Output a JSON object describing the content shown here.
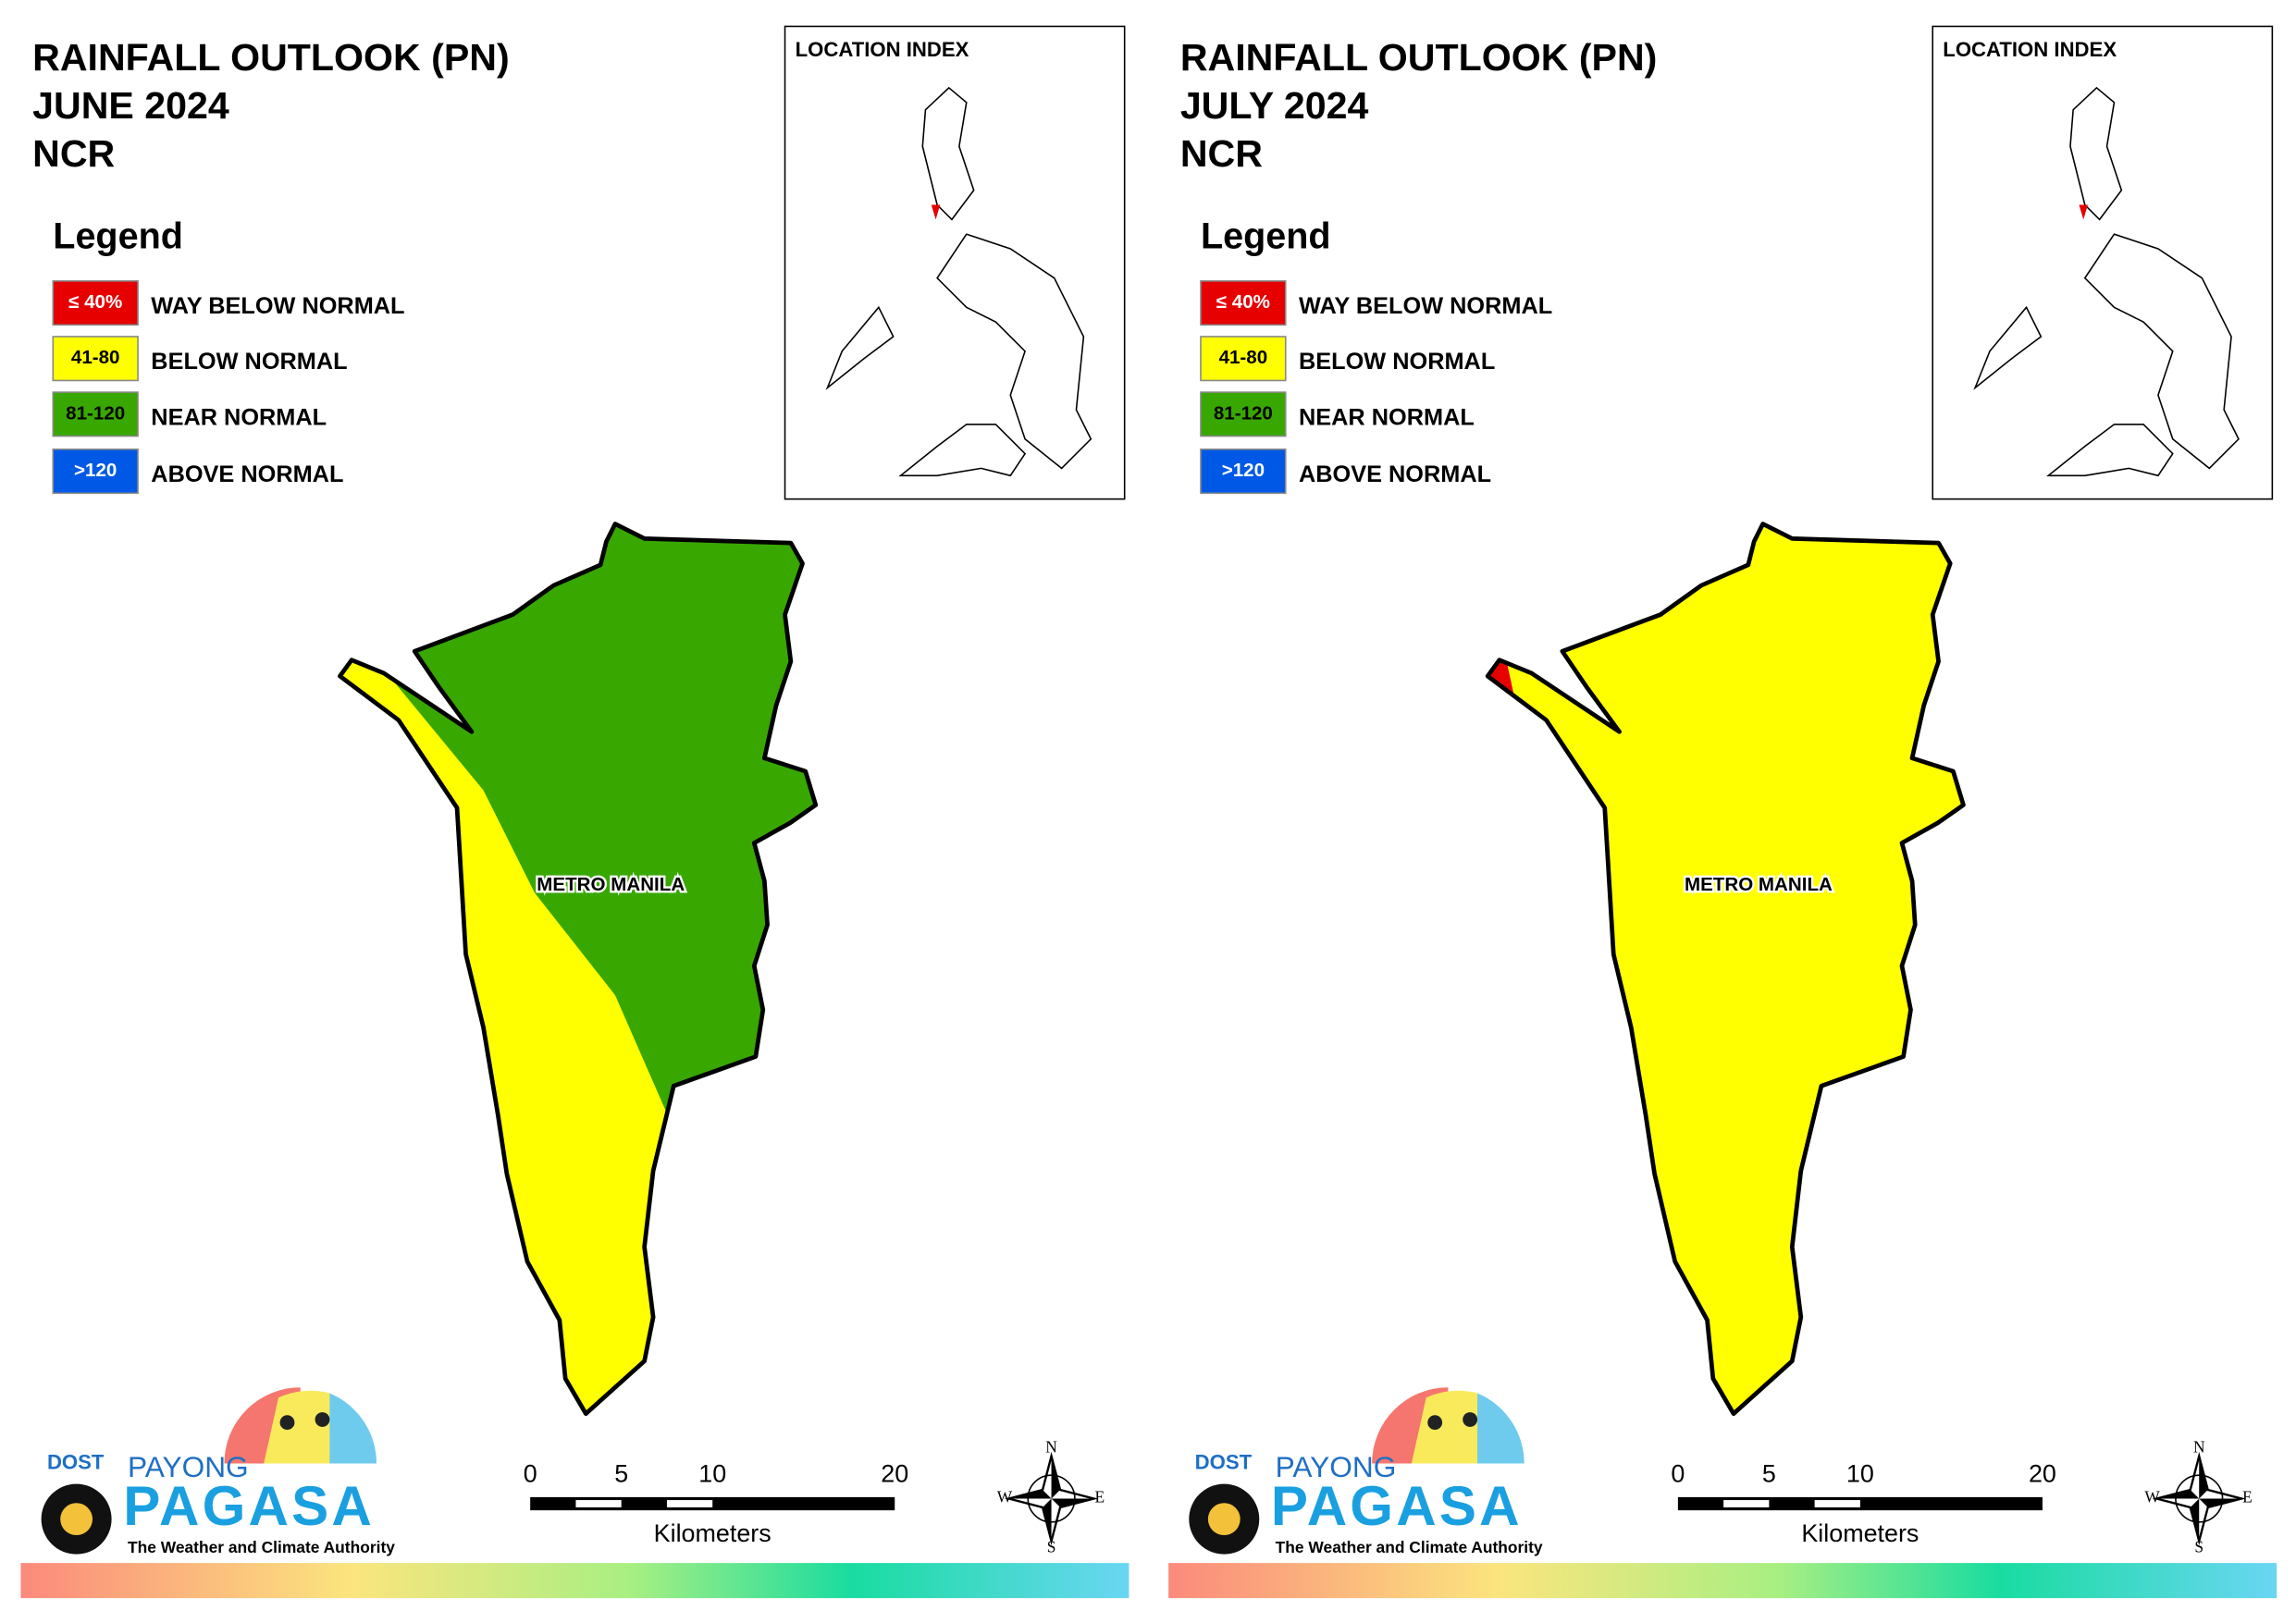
{
  "panels": [
    {
      "title": [
        "RAINFALL OUTLOOK (PN)",
        "JUNE 2024",
        "NCR"
      ],
      "legend": {
        "title": "Legend",
        "items": [
          {
            "code": "≤ 40%",
            "label": "WAY BELOW NORMAL",
            "color": "#e60000"
          },
          {
            "code": "41-80",
            "label": "BELOW NORMAL",
            "color": "#ffff00"
          },
          {
            "code": "81-120",
            "label": "NEAR NORMAL",
            "color": "#38a800"
          },
          {
            "code": ">120",
            "label": "ABOVE NORMAL",
            "color": "#0059e6"
          }
        ]
      },
      "location_index": "LOCATION INDEX",
      "map_label": "METRO MANILA",
      "scale": {
        "ticks": [
          0,
          5,
          10,
          20
        ],
        "unit": "Kilometers"
      },
      "compass": {
        "n": "N",
        "e": "E",
        "s": "S",
        "w": "W"
      },
      "logo": {
        "agency": "DOST",
        "brand_top": "PAYONG",
        "brand": "PAGASA",
        "tagline": "The Weather and Climate Authority"
      }
    },
    {
      "title": [
        "RAINFALL OUTLOOK (PN)",
        "JULY 2024",
        "NCR"
      ],
      "legend": {
        "title": "Legend",
        "items": [
          {
            "code": "≤ 40%",
            "label": "WAY BELOW NORMAL",
            "color": "#e60000"
          },
          {
            "code": "41-80",
            "label": "BELOW NORMAL",
            "color": "#ffff00"
          },
          {
            "code": "81-120",
            "label": "NEAR NORMAL",
            "color": "#38a800"
          },
          {
            "code": ">120",
            "label": "ABOVE NORMAL",
            "color": "#0059e6"
          }
        ]
      },
      "location_index": "LOCATION INDEX",
      "map_label": "METRO MANILA",
      "scale": {
        "ticks": [
          0,
          5,
          10,
          20
        ],
        "unit": "Kilometers"
      },
      "compass": {
        "n": "N",
        "e": "E",
        "s": "S",
        "w": "W"
      },
      "logo": {
        "agency": "DOST",
        "brand_top": "PAYONG",
        "brand": "PAGASA",
        "tagline": "The Weather and Climate Authority"
      }
    }
  ]
}
